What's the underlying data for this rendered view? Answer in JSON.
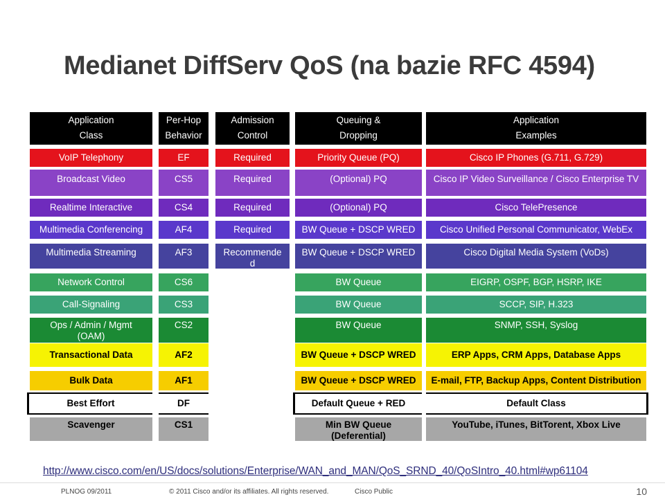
{
  "title": "Medianet DiffServ QoS (na bazie RFC 4594)",
  "headers": {
    "app_class": [
      "Application",
      "Class"
    ],
    "phb": [
      "Per-Hop",
      "Behavior"
    ],
    "admission": [
      "Admission",
      "Control"
    ],
    "queuing": [
      "Queuing &",
      "Dropping"
    ],
    "examples": [
      "Application",
      "Examples"
    ]
  },
  "rows": [
    {
      "app_class": "VoIP Telephony",
      "phb": "EF",
      "admission": "Required",
      "queuing": "Priority Queue (PQ)",
      "examples": "Cisco IP Phones (G.711, G.729)"
    },
    {
      "app_class": "Broadcast Video",
      "phb": "CS5",
      "admission": "Required",
      "queuing": "(Optional) PQ",
      "examples": "Cisco IP Video Surveillance / Cisco Enterprise TV"
    },
    {
      "app_class": "Realtime Interactive",
      "phb": "CS4",
      "admission": "Required",
      "queuing": "(Optional) PQ",
      "examples": "Cisco TelePresence"
    },
    {
      "app_class": "Multimedia Conferencing",
      "phb": "AF4",
      "admission": "Required",
      "queuing": "BW Queue + DSCP WRED",
      "examples": "Cisco Unified Personal Communicator, WebEx"
    },
    {
      "app_class": "Multimedia Streaming",
      "phb": "AF3",
      "admission": "Recommended",
      "queuing": "BW Queue + DSCP WRED",
      "examples": "Cisco Digital Media System (VoDs)"
    },
    {
      "app_class": "Network Control",
      "phb": "CS6",
      "admission": "",
      "queuing": "BW Queue",
      "examples": "EIGRP, OSPF, BGP, HSRP, IKE"
    },
    {
      "app_class": "Call-Signaling",
      "phb": "CS3",
      "admission": "",
      "queuing": "BW Queue",
      "examples": "SCCP, SIP, H.323"
    },
    {
      "app_class": "Ops / Admin / Mgmt (OAM)",
      "phb": "CS2",
      "admission": "",
      "queuing": "BW Queue",
      "examples": "SNMP, SSH, Syslog"
    },
    {
      "app_class": "Transactional Data",
      "phb": "AF2",
      "admission": "",
      "queuing": "BW Queue + DSCP WRED",
      "examples": "ERP Apps, CRM Apps, Database Apps"
    },
    {
      "app_class": "Bulk Data",
      "phb": "AF1",
      "admission": "",
      "queuing": "BW Queue + DSCP WRED",
      "examples": "E-mail, FTP, Backup Apps, Content Distribution"
    },
    {
      "app_class": "Best Effort",
      "phb": "DF",
      "admission": "",
      "queuing": "Default Queue + RED",
      "examples": "Default Class"
    },
    {
      "app_class": "Scavenger",
      "phb": "CS1",
      "admission": "",
      "queuing": "Min BW Queue (Deferential)",
      "examples": "YouTube, iTunes, BitTorent, Xbox Live"
    }
  ],
  "link": "http://www.cisco.com/en/US/docs/solutions/Enterprise/WAN_and_MAN/QoS_SRND_40/QoSIntro_40.html#wp61104",
  "footer": {
    "event": "PLNOG 09/2011",
    "copyright": "© 2011 Cisco and/or its affiliates. All rights reserved.",
    "classification": "Cisco Public",
    "page": "10"
  },
  "colors": {
    "header_bg": "#000000",
    "voip": "#e4131c",
    "video": "#8a43c6",
    "streaming": "#45439e",
    "control": "#37a45e",
    "transactional": "#f6f303",
    "bulk": "#f6cd00",
    "scavenger": "#a7a7a7"
  }
}
